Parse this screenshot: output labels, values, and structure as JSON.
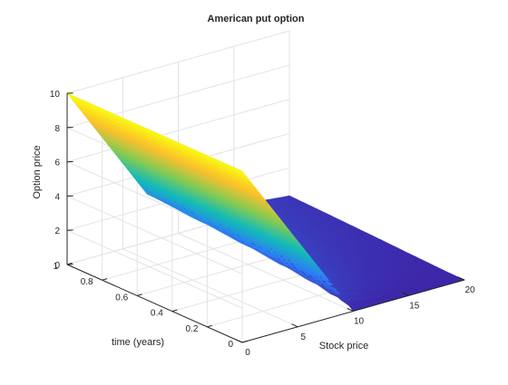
{
  "chart_data": {
    "type": "surface",
    "title": "American put option",
    "xlabel": "Stock price",
    "ylabel": "time (years)",
    "zlabel": "Option price",
    "xlim": [
      0,
      20
    ],
    "ylim": [
      0,
      1
    ],
    "zlim": [
      0,
      10
    ],
    "x_ticks": [
      0,
      5,
      10,
      15,
      20
    ],
    "y_ticks": [
      0,
      0.2,
      0.4,
      0.6,
      0.8,
      1
    ],
    "z_ticks": [
      0,
      2,
      4,
      6,
      8,
      10
    ],
    "x_tick_labels": [
      "0",
      "5",
      "10",
      "15",
      "20"
    ],
    "y_tick_labels": [
      "0",
      "0.2",
      "0.4",
      "0.6",
      "0.8",
      "1"
    ],
    "z_tick_labels": [
      "0",
      "2",
      "4",
      "6",
      "8",
      "10"
    ],
    "strike": 10,
    "grid": true,
    "colormap": [
      "#3e26a8",
      "#2f7af8",
      "#12bbb8",
      "#84cb53",
      "#fbbf2c",
      "#f9fb0e"
    ],
    "surface": {
      "description_points": [
        {
          "stock_price": 0,
          "time": 1,
          "value": 10
        },
        {
          "stock_price": 0,
          "time": 0,
          "value": 10
        },
        {
          "stock_price": 10,
          "time": 1,
          "value": 1.9
        },
        {
          "stock_price": 10,
          "time": 0,
          "value": 0
        },
        {
          "stock_price": 20,
          "time": 1,
          "value": 0.1
        },
        {
          "stock_price": 20,
          "time": 0,
          "value": 0
        }
      ]
    }
  }
}
